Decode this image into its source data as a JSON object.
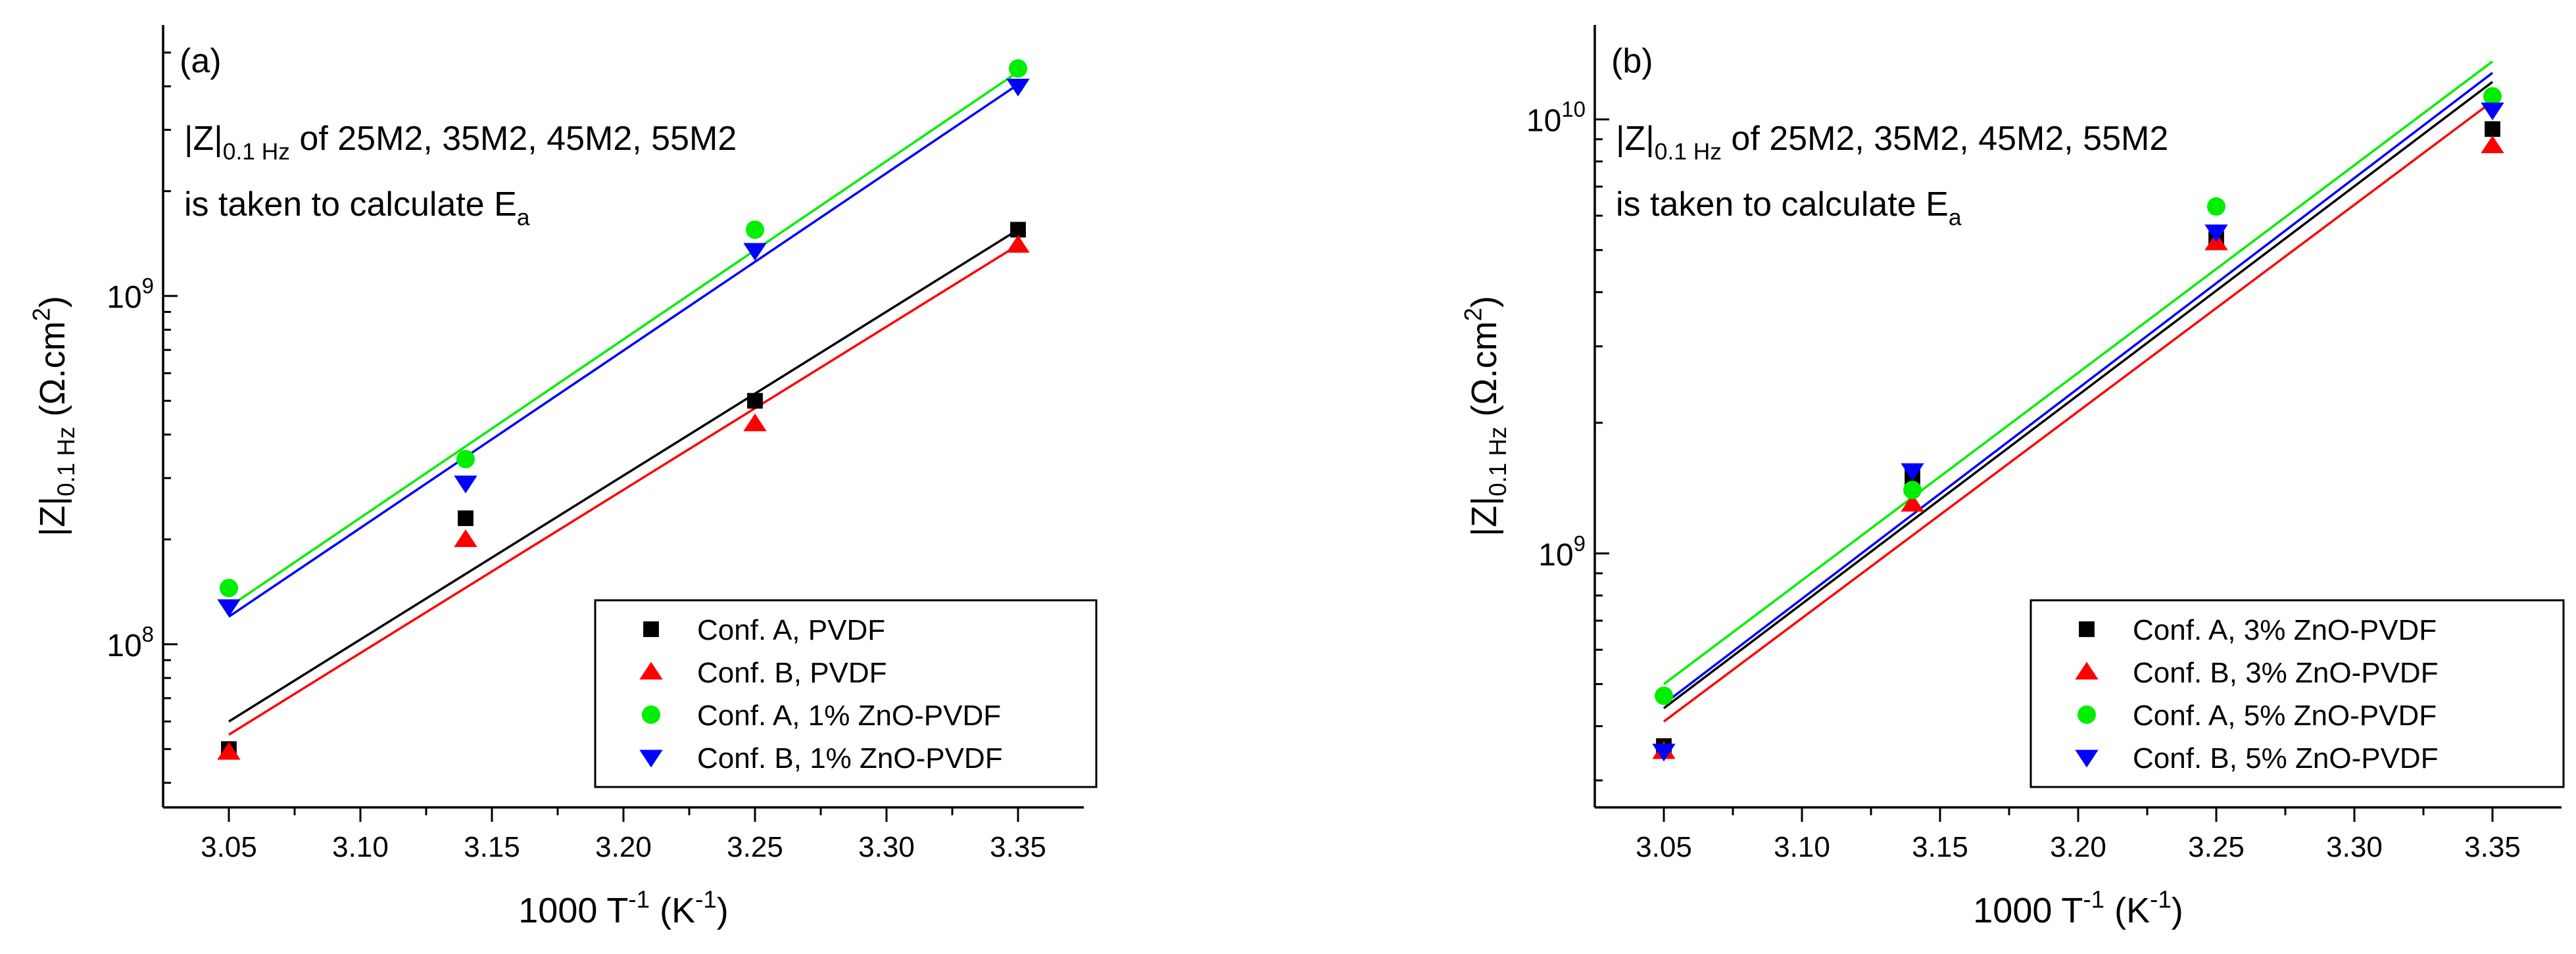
{
  "chart_data": [
    {
      "type": "scatter",
      "panel_label": "(a)",
      "annotation": {
        "line1_prefix": "|Z|",
        "line1_subscript": "0.1 Hz",
        "line1_suffix": " of 25M2, 35M2, 45M2, 55M2",
        "line2_prefix": "is taken to calculate E",
        "line2_subscript": "a"
      },
      "xlabel": {
        "prefix": "1000 T",
        "sup1": "-1",
        "mid": " (K",
        "sup2": "-1",
        "suffix": ")"
      },
      "ylabel": {
        "prefix": "|Z|",
        "sub": "0.1 Hz",
        "mid": " (Ω.cm",
        "sup": "2",
        "suffix": ")"
      },
      "yscale": "log",
      "xlim": [
        3.025,
        3.375
      ],
      "ylim": [
        34000000,
        6000000000
      ],
      "xticks": [
        3.05,
        3.1,
        3.15,
        3.2,
        3.25,
        3.3,
        3.35
      ],
      "xtick_labels": [
        "3.05",
        "3.10",
        "3.15",
        "3.20",
        "3.25",
        "3.30",
        "3.35"
      ],
      "yticks": [
        {
          "value": 100000000,
          "base": "10",
          "exp": "8"
        },
        {
          "value": 1000000000,
          "base": "10",
          "exp": "9"
        }
      ],
      "legend_position": "bottom-right",
      "series": [
        {
          "name": "Conf. A, PVDF",
          "marker": "square",
          "color": "#000000",
          "x": [
            3.05,
            3.14,
            3.25,
            3.35
          ],
          "y": [
            50000000,
            230000000,
            500000000,
            1550000000
          ],
          "fit": {
            "x": [
              3.05,
              3.35
            ],
            "y": [
              60000000,
              1550000000
            ]
          }
        },
        {
          "name": "Conf. B, PVDF",
          "marker": "triangle-up",
          "color": "#ff0000",
          "x": [
            3.05,
            3.14,
            3.25,
            3.35
          ],
          "y": [
            49000000,
            200000000,
            430000000,
            1400000000
          ],
          "fit": {
            "x": [
              3.05,
              3.35
            ],
            "y": [
              55000000,
              1400000000
            ]
          }
        },
        {
          "name": "Conf. A, 1% ZnO-PVDF",
          "marker": "circle",
          "color": "#00ee00",
          "x": [
            3.05,
            3.14,
            3.25,
            3.35
          ],
          "y": [
            145000000,
            340000000,
            1550000000,
            4500000000
          ],
          "fit": {
            "x": [
              3.05,
              3.35
            ],
            "y": [
              128000000,
              4400000000
            ]
          }
        },
        {
          "name": "Conf. B, 1% ZnO-PVDF",
          "marker": "triangle-down",
          "color": "#0000ff",
          "x": [
            3.05,
            3.14,
            3.25,
            3.35
          ],
          "y": [
            128000000,
            290000000,
            1350000000,
            4000000000
          ],
          "fit": {
            "x": [
              3.05,
              3.35
            ],
            "y": [
              120000000,
              4050000000
            ]
          }
        }
      ]
    },
    {
      "type": "scatter",
      "panel_label": "(b)",
      "annotation": {
        "line1_prefix": "|Z|",
        "line1_subscript": "0.1 Hz",
        "line1_suffix": " of 25M2, 35M2, 45M2, 55M2",
        "line2_prefix": "is taken to calculate E",
        "line2_subscript": "a"
      },
      "xlabel": {
        "prefix": "1000 T",
        "sup1": "-1",
        "mid": " (K",
        "sup2": "-1",
        "suffix": ")"
      },
      "ylabel": {
        "prefix": "|Z|",
        "sub": "0.1 Hz",
        "mid": " (Ω.cm",
        "sup": "2",
        "suffix": ")"
      },
      "yscale": "log",
      "xlim": [
        3.025,
        3.375
      ],
      "ylim": [
        260000000,
        16500000000
      ],
      "xticks": [
        3.05,
        3.1,
        3.15,
        3.2,
        3.25,
        3.3,
        3.35
      ],
      "xtick_labels": [
        "3.05",
        "3.10",
        "3.15",
        "3.20",
        "3.25",
        "3.30",
        "3.35"
      ],
      "yticks": [
        {
          "value": 1000000000,
          "base": "10",
          "exp": "9"
        },
        {
          "value": 10000000000,
          "base": "10",
          "exp": "10"
        }
      ],
      "legend_position": "bottom-right",
      "series": [
        {
          "name": "Conf. A, 3% ZnO-PVDF",
          "marker": "square",
          "color": "#000000",
          "x": [
            3.05,
            3.14,
            3.25,
            3.35
          ],
          "y": [
            360000000,
            1500000000,
            5300000000,
            9500000000
          ],
          "fit": {
            "x": [
              3.05,
              3.35
            ],
            "y": [
              440000000,
              12200000000
            ]
          }
        },
        {
          "name": "Conf. B, 3% ZnO-PVDF",
          "marker": "triangle-up",
          "color": "#ff0000",
          "x": [
            3.05,
            3.14,
            3.25,
            3.35
          ],
          "y": [
            350000000,
            1300000000,
            5200000000,
            8700000000
          ],
          "fit": {
            "x": [
              3.05,
              3.35
            ],
            "y": [
              410000000,
              11000000000
            ]
          }
        },
        {
          "name": "Conf. A, 5% ZnO-PVDF",
          "marker": "circle",
          "color": "#00ee00",
          "x": [
            3.05,
            3.14,
            3.25,
            3.35
          ],
          "y": [
            470000000,
            1400000000,
            6300000000,
            11300000000
          ],
          "fit": {
            "x": [
              3.05,
              3.35
            ],
            "y": [
              500000000,
              13600000000
            ]
          }
        },
        {
          "name": "Conf. B, 5% ZnO-PVDF",
          "marker": "triangle-down",
          "color": "#0000ff",
          "x": [
            3.05,
            3.14,
            3.25,
            3.35
          ],
          "y": [
            350000000,
            1550000000,
            5500000000,
            10500000000
          ],
          "fit": {
            "x": [
              3.05,
              3.35
            ],
            "y": [
              450000000,
              12800000000
            ]
          }
        }
      ]
    }
  ]
}
